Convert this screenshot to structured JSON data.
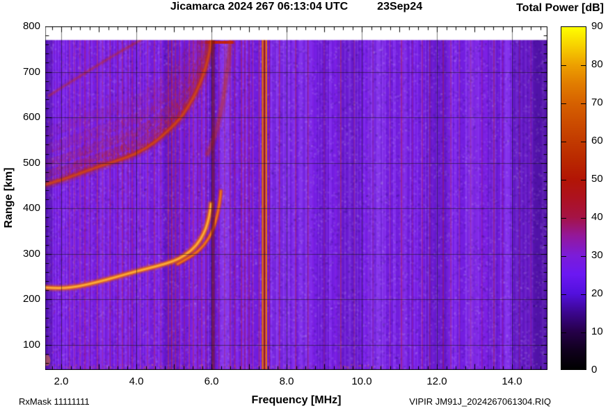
{
  "title": {
    "main": "Jicamarca 2024 267 06:13:04 UTC",
    "date": "23Sep24"
  },
  "colorbar": {
    "title": "Total Power [dB]",
    "min": 0,
    "max": 90,
    "ticks": [
      {
        "v": 0,
        "label": "0"
      },
      {
        "v": 10,
        "label": "10"
      },
      {
        "v": 20,
        "label": "20"
      },
      {
        "v": 30,
        "label": "30"
      },
      {
        "v": 40,
        "label": "40"
      },
      {
        "v": 50,
        "label": "50"
      },
      {
        "v": 60,
        "label": "60"
      },
      {
        "v": 70,
        "label": "70"
      },
      {
        "v": 80,
        "label": "80"
      },
      {
        "v": 90,
        "label": "90"
      }
    ]
  },
  "axes": {
    "x": {
      "label": "Frequency [MHz]",
      "min": 1.57,
      "max": 14.94,
      "minor_step": 0.25,
      "ticks": [
        {
          "v": 2,
          "label": "2.0"
        },
        {
          "v": 4,
          "label": "4.0"
        },
        {
          "v": 6,
          "label": "6.0"
        },
        {
          "v": 8,
          "label": "8.0"
        },
        {
          "v": 10,
          "label": "10.0"
        },
        {
          "v": 12,
          "label": "12.0"
        },
        {
          "v": 14,
          "label": "14.0"
        }
      ]
    },
    "y": {
      "label": "Range [km]",
      "min": 45,
      "max": 800,
      "minor_step": 20,
      "ticks": [
        {
          "v": 100,
          "label": "100"
        },
        {
          "v": 200,
          "label": "200"
        },
        {
          "v": 300,
          "label": "300"
        },
        {
          "v": 400,
          "label": "400"
        },
        {
          "v": 500,
          "label": "500"
        },
        {
          "v": 600,
          "label": "600"
        },
        {
          "v": 700,
          "label": "700"
        },
        {
          "v": 800,
          "label": "800"
        }
      ]
    }
  },
  "footer": {
    "left": "RxMask 11111111",
    "right": "VIPIR  JM91J_2024267061304.RIQ"
  },
  "chart_data": {
    "type": "heatmap",
    "title": "Jicamarca 2024 267 06:13:04 UTC  23Sep24",
    "xlabel": "Frequency [MHz]",
    "ylabel": "Range [km]",
    "zlabel": "Total Power [dB]",
    "xlim": [
      1.57,
      14.94
    ],
    "ylim": [
      45,
      800
    ],
    "zlim": [
      0,
      90
    ],
    "grid": {
      "x_major_mhz": [
        2,
        4,
        6,
        8,
        10,
        12,
        14
      ],
      "y_major_km": [
        100,
        200,
        300,
        400,
        500,
        600,
        700
      ]
    },
    "background_level_db": 27,
    "background_color": "#7a20ea",
    "data_top_km": 770,
    "palette_stops": [
      [
        0,
        "#000000"
      ],
      [
        5,
        "#10001d"
      ],
      [
        10,
        "#26004a"
      ],
      [
        15,
        "#3c0690"
      ],
      [
        20,
        "#5310de"
      ],
      [
        25,
        "#6b18f2"
      ],
      [
        30,
        "#7c1cd8"
      ],
      [
        35,
        "#93189c"
      ],
      [
        40,
        "#a51345"
      ],
      [
        45,
        "#ad1220"
      ],
      [
        50,
        "#b21505"
      ],
      [
        55,
        "#b92800"
      ],
      [
        60,
        "#c23a00"
      ],
      [
        65,
        "#cc4d00"
      ],
      [
        70,
        "#d66100"
      ],
      [
        75,
        "#e17c00"
      ],
      [
        80,
        "#eda000"
      ],
      [
        85,
        "#f7d000"
      ],
      [
        90,
        "#ffff00"
      ]
    ],
    "echo_traces": {
      "first_hop_o": {
        "critical_freq_mhz": 6.0,
        "points": [
          [
            1.57,
            226
          ],
          [
            2.0,
            224
          ],
          [
            2.5,
            229
          ],
          [
            3.0,
            239
          ],
          [
            3.5,
            250
          ],
          [
            4.0,
            262
          ],
          [
            4.5,
            272
          ],
          [
            5.0,
            284
          ],
          [
            5.3,
            297
          ],
          [
            5.6,
            318
          ],
          [
            5.8,
            345
          ],
          [
            5.9,
            368
          ],
          [
            5.96,
            392
          ],
          [
            5.99,
            410
          ]
        ]
      },
      "first_hop_x": {
        "critical_freq_mhz": 6.26,
        "points": [
          [
            5.1,
            278
          ],
          [
            5.5,
            296
          ],
          [
            5.8,
            318
          ],
          [
            6.0,
            345
          ],
          [
            6.1,
            368
          ],
          [
            6.18,
            395
          ],
          [
            6.23,
            420
          ],
          [
            6.25,
            438
          ]
        ]
      },
      "second_hop_o": {
        "points": [
          [
            1.57,
            452
          ],
          [
            2.0,
            462
          ],
          [
            2.5,
            477
          ],
          [
            3.0,
            492
          ],
          [
            3.5,
            505
          ],
          [
            4.0,
            520
          ],
          [
            4.5,
            545
          ],
          [
            4.9,
            575
          ],
          [
            5.2,
            600
          ],
          [
            5.5,
            640
          ],
          [
            5.7,
            675
          ],
          [
            5.85,
            710
          ],
          [
            5.95,
            745
          ],
          [
            6.0,
            770
          ]
        ]
      },
      "second_hop_x": {
        "points": [
          [
            5.9,
            520
          ],
          [
            6.1,
            560
          ],
          [
            6.25,
            610
          ],
          [
            6.35,
            660
          ],
          [
            6.45,
            720
          ],
          [
            6.5,
            770
          ]
        ]
      },
      "high_streak": {
        "points": [
          [
            1.68,
            648
          ],
          [
            2.9,
            712
          ],
          [
            4.15,
            772
          ]
        ]
      }
    },
    "interference": {
      "strong_line_mhz": 7.41,
      "strong_line_stripes": [
        {
          "f": 7.27,
          "w": 1.2,
          "color": "rgba(185,30,20,0.55)"
        },
        {
          "f": 7.36,
          "w": 2.4,
          "color": "rgba(228,108,0,0.95)"
        },
        {
          "f": 7.41,
          "w": 2.2,
          "color": "rgba(160,22,6,0.92)"
        },
        {
          "f": 7.46,
          "w": 2.4,
          "color": "rgba(232,118,0,0.95)"
        },
        {
          "f": 6.06,
          "w": 3.0,
          "color": "rgba(110,10,22,0.55)"
        },
        {
          "f": 6.02,
          "w": 1.4,
          "color": "rgba(150,22,12,0.6)"
        }
      ],
      "rfi_lines": [
        [
          2.22,
          0.35
        ],
        [
          2.35,
          0.3
        ],
        [
          2.5,
          0.35
        ],
        [
          2.63,
          0.45
        ],
        [
          2.75,
          0.3
        ],
        [
          2.96,
          0.5
        ],
        [
          3.1,
          0.3
        ],
        [
          3.3,
          0.45
        ],
        [
          3.5,
          0.35
        ],
        [
          3.63,
          0.5
        ],
        [
          3.78,
          0.3
        ],
        [
          3.89,
          0.45
        ],
        [
          4.1,
          0.3
        ],
        [
          4.3,
          0.35
        ],
        [
          4.48,
          0.5
        ],
        [
          4.65,
          0.3
        ],
        [
          4.85,
          0.6
        ],
        [
          4.94,
          0.65
        ],
        [
          5.04,
          0.55
        ],
        [
          5.15,
          0.45
        ],
        [
          5.28,
          0.35
        ],
        [
          5.41,
          0.5
        ],
        [
          5.52,
          0.5
        ],
        [
          5.63,
          0.35
        ],
        [
          5.74,
          0.5
        ],
        [
          5.85,
          0.45
        ],
        [
          6.2,
          0.4
        ],
        [
          6.35,
          0.35
        ],
        [
          6.5,
          0.4
        ],
        [
          6.62,
          0.5
        ],
        [
          6.8,
          0.55
        ],
        [
          6.89,
          0.5
        ],
        [
          7.0,
          0.45
        ],
        [
          7.1,
          0.35
        ],
        [
          7.54,
          0.65
        ],
        [
          7.81,
          0.5
        ],
        [
          8.24,
          0.5
        ],
        [
          8.57,
          0.45
        ],
        [
          9.0,
          0.3
        ],
        [
          9.44,
          0.5
        ],
        [
          9.8,
          0.3
        ],
        [
          10.3,
          0.25
        ],
        [
          10.75,
          0.3
        ],
        [
          11.06,
          0.5
        ],
        [
          11.35,
          0.3
        ],
        [
          11.61,
          0.45
        ],
        [
          11.81,
          0.45
        ],
        [
          12.17,
          0.5
        ],
        [
          12.37,
          0.4
        ],
        [
          12.6,
          0.35
        ],
        [
          12.9,
          0.3
        ],
        [
          13.2,
          0.3
        ],
        [
          13.52,
          0.5
        ],
        [
          13.75,
          0.3
        ],
        [
          14.2,
          0.28
        ],
        [
          14.5,
          0.24
        ]
      ],
      "bands": [
        {
          "from": 1.57,
          "to": 1.78,
          "color": "rgba(25,0,80,0.18)"
        },
        {
          "from": 4.72,
          "to": 5.1,
          "color": "rgba(25,0,80,0.12)"
        },
        {
          "from": 5.93,
          "to": 6.13,
          "color": "rgba(25,0,80,0.16)"
        },
        {
          "from": 6.3,
          "to": 6.55,
          "color": "rgba(190,150,255,0.10)"
        },
        {
          "from": 7.6,
          "to": 8.08,
          "color": "rgba(190,150,255,0.08)"
        },
        {
          "from": 8.35,
          "to": 8.6,
          "color": "rgba(190,150,255,0.07)"
        },
        {
          "from": 8.82,
          "to": 9.12,
          "color": "rgba(25,0,80,0.08)"
        },
        {
          "from": 9.35,
          "to": 9.95,
          "color": "rgba(25,0,80,0.12)"
        },
        {
          "from": 10.15,
          "to": 10.62,
          "color": "rgba(190,150,255,0.09)"
        },
        {
          "from": 11.0,
          "to": 11.22,
          "color": "rgba(190,150,255,0.07)"
        },
        {
          "from": 11.7,
          "to": 12.32,
          "color": "rgba(25,0,80,0.12)"
        },
        {
          "from": 12.75,
          "to": 13.12,
          "color": "rgba(190,150,255,0.08)"
        },
        {
          "from": 13.35,
          "to": 13.62,
          "color": "rgba(25,0,80,0.09)"
        },
        {
          "from": 13.8,
          "to": 13.95,
          "color": "rgba(190,150,255,0.07)"
        },
        {
          "from": 14.0,
          "to": 14.94,
          "color": "rgba(25,0,80,0.20)"
        },
        {
          "from": 14.55,
          "to": 14.94,
          "color": "rgba(20,0,60,0.18)"
        }
      ]
    }
  }
}
